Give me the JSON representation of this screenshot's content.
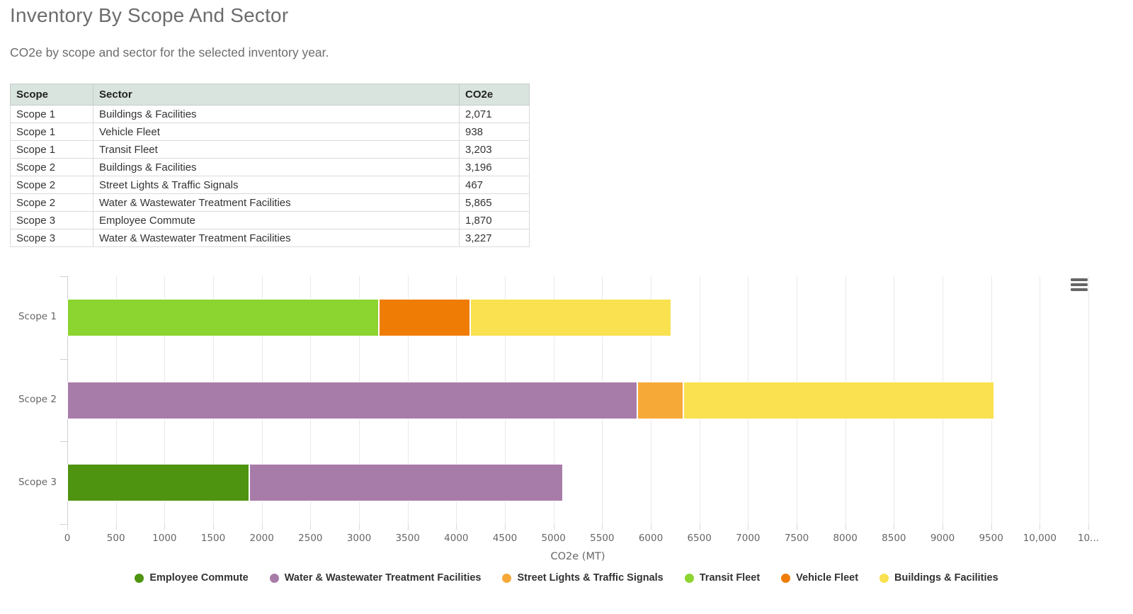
{
  "page": {
    "title": "Inventory By Scope And Sector",
    "subtitle": "CO2e by scope and sector for the selected inventory year."
  },
  "table": {
    "columns": [
      "Scope",
      "Sector",
      "CO2e"
    ],
    "rows": [
      [
        "Scope 1",
        "Buildings & Facilities",
        "2,071"
      ],
      [
        "Scope 1",
        "Vehicle Fleet",
        "938"
      ],
      [
        "Scope 1",
        "Transit Fleet",
        "3,203"
      ],
      [
        "Scope 2",
        "Buildings & Facilities",
        "3,196"
      ],
      [
        "Scope 2",
        "Street Lights & Traffic Signals",
        "467"
      ],
      [
        "Scope 2",
        "Water & Wastewater Treatment Facilities",
        "5,865"
      ],
      [
        "Scope 3",
        "Employee Commute",
        "1,870"
      ],
      [
        "Scope 3",
        "Water & Wastewater Treatment Facilities",
        "3,227"
      ]
    ]
  },
  "chart_data": {
    "type": "bar",
    "orientation": "horizontal",
    "stacked": true,
    "grid": true,
    "xlabel": "CO2e (MT)",
    "categories": [
      "Scope 1",
      "Scope 2",
      "Scope 3"
    ],
    "xlim": [
      0,
      10500
    ],
    "tick_interval": 500,
    "tick_labels": [
      "0",
      "500",
      "1000",
      "1500",
      "2000",
      "2500",
      "3000",
      "3500",
      "4000",
      "4500",
      "5000",
      "5500",
      "6000",
      "6500",
      "7000",
      "7500",
      "8000",
      "8500",
      "9000",
      "9500",
      "10,000",
      "10..."
    ],
    "series": [
      {
        "name": "Employee Commute",
        "color": "#4e9410",
        "values": [
          0,
          0,
          1870
        ]
      },
      {
        "name": "Water & Wastewater Treatment Facilities",
        "color": "#a87ca8",
        "values": [
          0,
          5865,
          3227
        ]
      },
      {
        "name": "Street Lights & Traffic Signals",
        "color": "#f7a938",
        "values": [
          0,
          467,
          0
        ]
      },
      {
        "name": "Transit Fleet",
        "color": "#8cd42f",
        "values": [
          3203,
          0,
          0
        ]
      },
      {
        "name": "Vehicle Fleet",
        "color": "#ef7d05",
        "values": [
          938,
          0,
          0
        ]
      },
      {
        "name": "Buildings & Facilities",
        "color": "#f9e14f",
        "values": [
          2071,
          3196,
          0
        ]
      }
    ],
    "legend_position": "bottom",
    "totals": {
      "Scope 1": 6212,
      "Scope 2": 9528,
      "Scope 3": 5097
    }
  },
  "colors": {
    "table_header_bg": "#d9e4de",
    "text_muted": "#6b6c6e",
    "chart_text": "#666666",
    "gridline": "#e8e9ed"
  }
}
